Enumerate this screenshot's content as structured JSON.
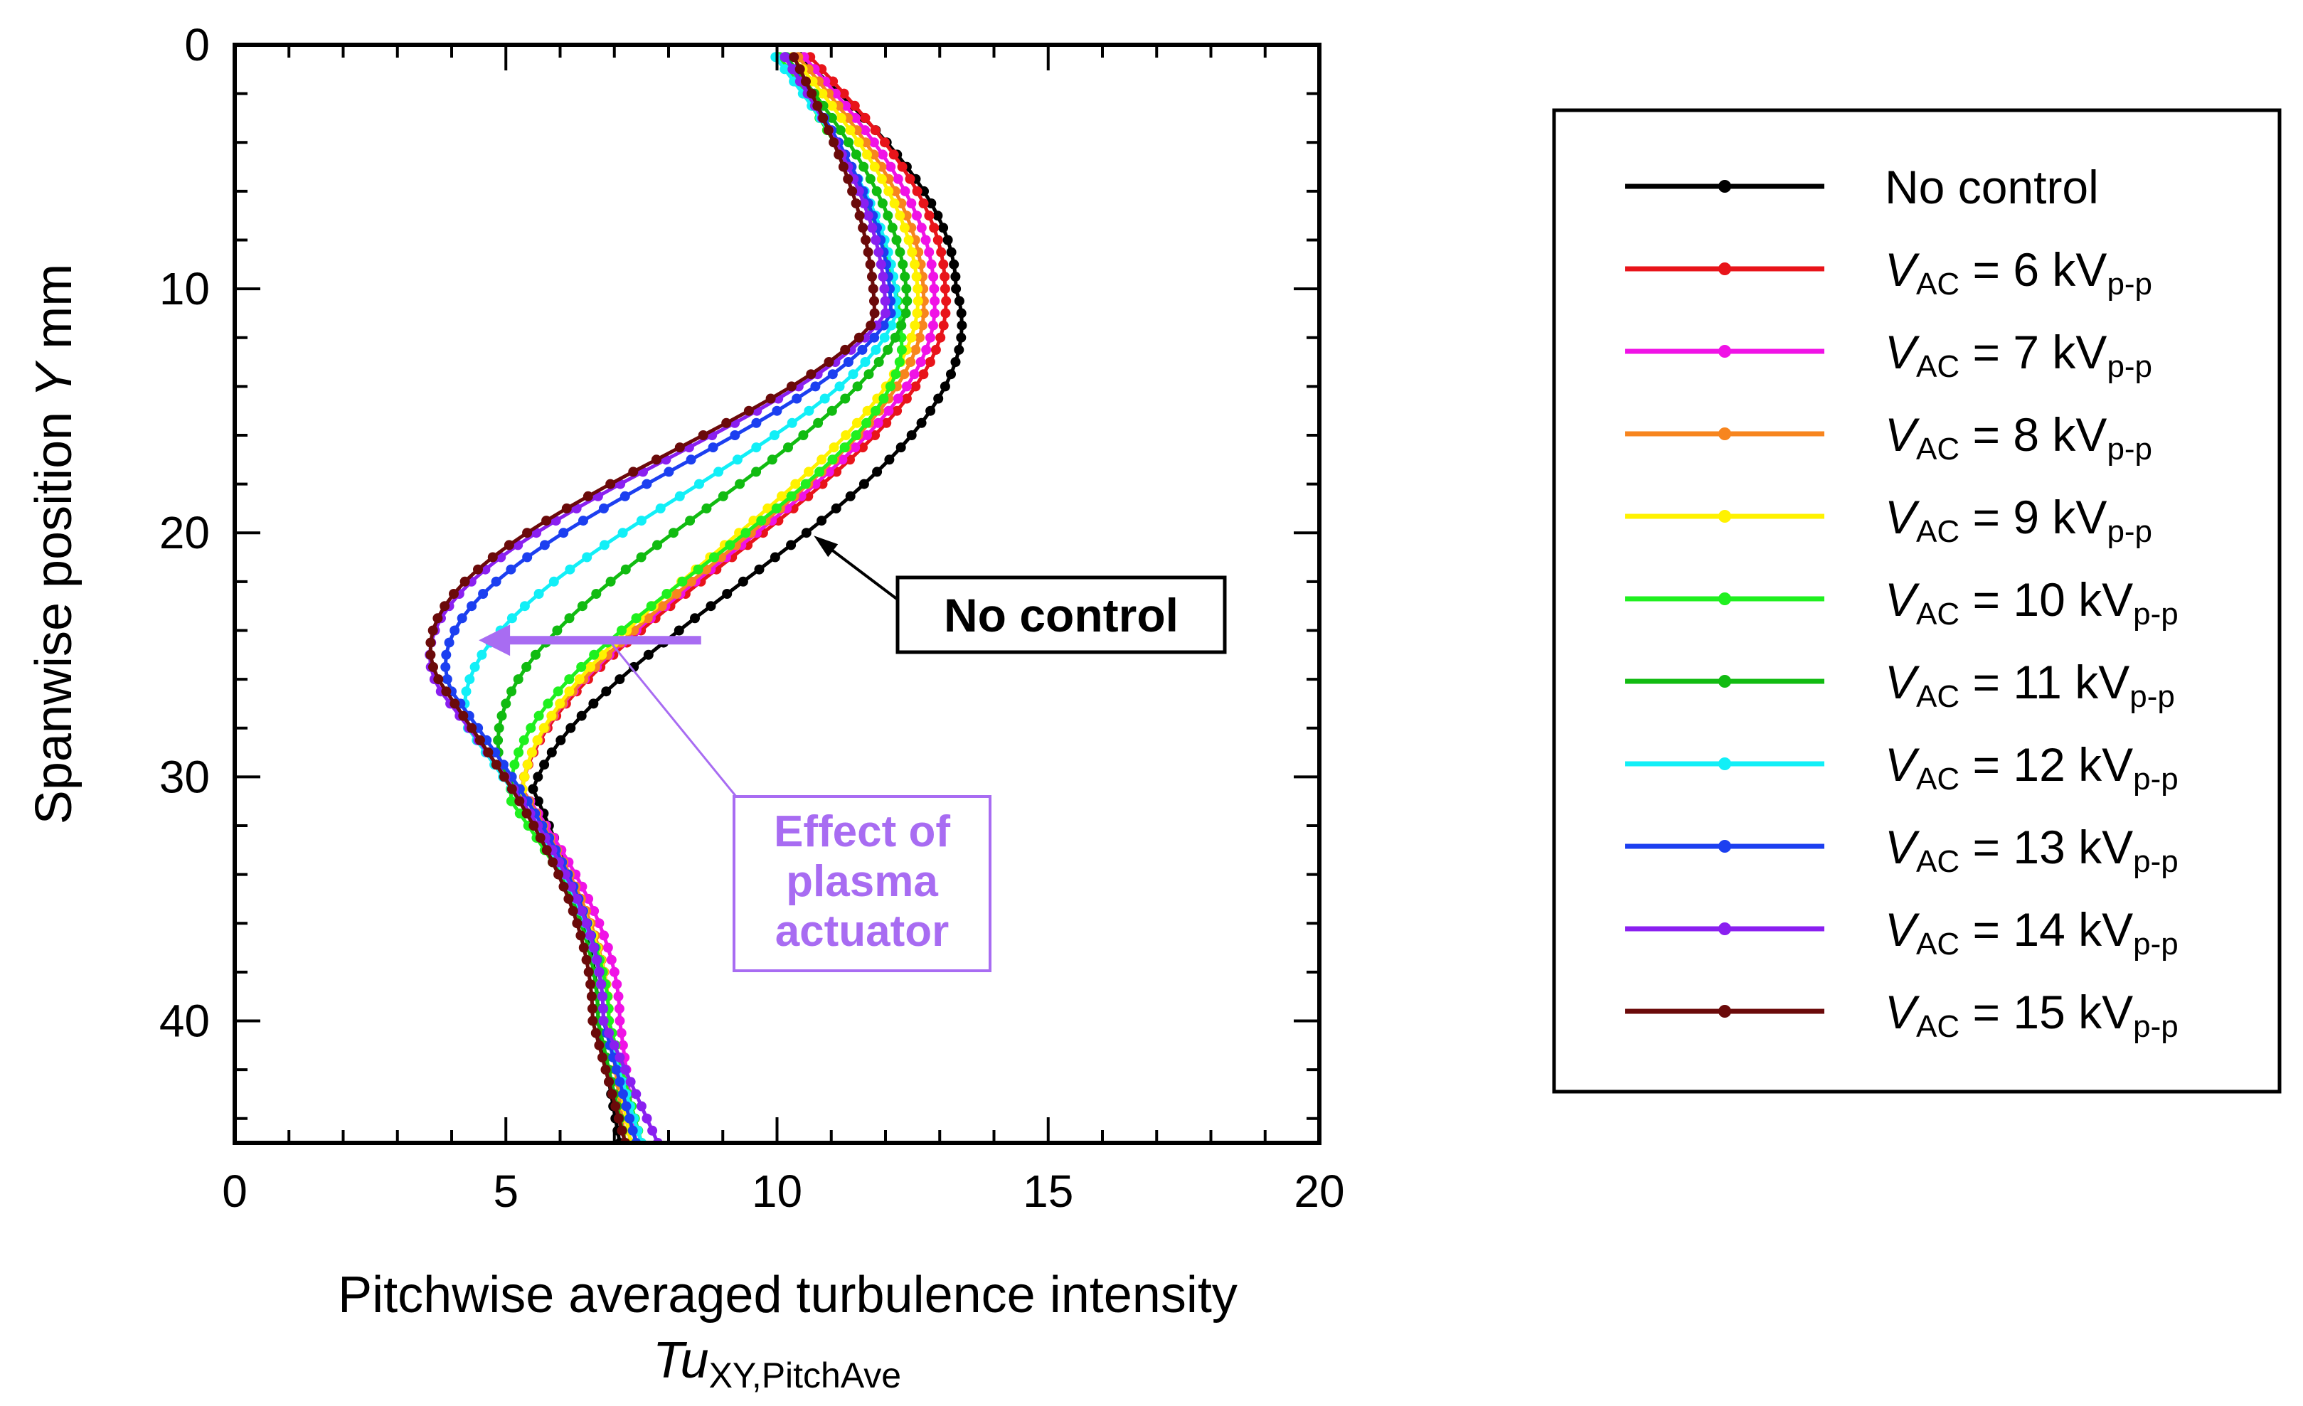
{
  "chart_data": {
    "type": "line",
    "title": "",
    "xlabel": "Pitchwise averaged turbulence intensity",
    "xlabel_symbol": "Tu",
    "xlabel_subscript": "XY,PitchAve",
    "ylabel": "Spanwise position",
    "ylabel_symbol": "Y",
    "ylabel_unit": "mm",
    "xlim": [
      0,
      20
    ],
    "ylim": [
      0,
      45
    ],
    "y_inverted": true,
    "xticks": [
      0,
      5,
      10,
      15,
      20
    ],
    "yticks": [
      0,
      10,
      20,
      30,
      40
    ],
    "grid": false,
    "legend_position": "right",
    "base_y": [
      0.5,
      1.0,
      1.5,
      2.0,
      2.5,
      3.0,
      3.5,
      4.0,
      4.5,
      5.0,
      5.5,
      6.0,
      6.5,
      7.0,
      7.5,
      8.0,
      8.5,
      9.0,
      9.5,
      10.0,
      10.5,
      11.0,
      11.5,
      12.0,
      12.5,
      13.0,
      13.5,
      14.0,
      14.5,
      15.0,
      15.5,
      16.0,
      16.5,
      17.0,
      17.5,
      18.0,
      18.5,
      19.0,
      19.5,
      20.0,
      20.5,
      21.0,
      21.5,
      22.0,
      22.5,
      23.0,
      23.5,
      24.0,
      24.5,
      25.0,
      25.5,
      26.0,
      26.5,
      27.0,
      27.5,
      28.0,
      28.5,
      29.0,
      29.5,
      30.0,
      30.5,
      31.0,
      31.5,
      32.0,
      32.5,
      33.0,
      33.5,
      34.0,
      34.5,
      35.0,
      35.5,
      36.0,
      36.5,
      37.0,
      37.5,
      38.0,
      38.5,
      39.0,
      39.5,
      40.0,
      40.5,
      41.0,
      41.5,
      42.0,
      42.5,
      43.0,
      43.5,
      44.0,
      44.5,
      45.0
    ],
    "series": [
      {
        "name": "No control",
        "color": "#000000",
        "profile": {
          "x0": 10.2,
          "xpeak": 13.3,
          "ypeak": 10,
          "xmid": 10.4,
          "xmin": 5.5,
          "ymin": 30.5,
          "x40": 6.7,
          "x45": 7.1
        }
      },
      {
        "name": "VAC = 6 kVp-p",
        "color": "#e8141a",
        "profile": {
          "x0": 10.4,
          "xpeak": 13.1,
          "ypeak": 10,
          "xmid": 9.6,
          "xmin": 5.3,
          "ymin": 30.5,
          "x40": 6.9,
          "x45": 7.3
        }
      },
      {
        "name": "VAC = 7 kVp-p",
        "color": "#f012e6",
        "profile": {
          "x0": 10.3,
          "xpeak": 12.9,
          "ypeak": 10.3,
          "xmid": 9.4,
          "xmin": 5.3,
          "ymin": 30.5,
          "x40": 7.1,
          "x45": 7.4
        }
      },
      {
        "name": "VAC = 8 kVp-p",
        "color": "#f7851e",
        "profile": {
          "x0": 10.2,
          "xpeak": 12.7,
          "ypeak": 10.3,
          "xmid": 9.3,
          "xmin": 5.3,
          "ymin": 30.5,
          "x40": 6.9,
          "x45": 7.2
        }
      },
      {
        "name": "VAC = 9 kVp-p",
        "color": "#fff200",
        "profile": {
          "x0": 10.1,
          "xpeak": 12.6,
          "ypeak": 10.5,
          "xmid": 8.9,
          "xmin": 5.3,
          "ymin": 31,
          "x40": 6.9,
          "x45": 7.3
        }
      },
      {
        "name": "VAC = 10 kVp-p",
        "color": "#1ff01f",
        "profile": {
          "x0": 9.9,
          "xpeak": 12.3,
          "ypeak": 12.5,
          "xmid": 8.4,
          "xmin": 5.1,
          "ymin": 31,
          "x40": 6.9,
          "x45": 7.5
        }
      },
      {
        "name": "VAC = 11 kVp-p",
        "color": "#11bb11",
        "profile": {
          "x0": 10.0,
          "xpeak": 12.4,
          "ypeak": 10.8,
          "xmid": 8.0,
          "xmin": 4.9,
          "ymin": 29.5,
          "x40": 6.7,
          "x45": 7.2
        }
      },
      {
        "name": "VAC = 12 kVp-p",
        "color": "#12eff7",
        "profile": {
          "x0": 9.8,
          "xpeak": 12.2,
          "ypeak": 11,
          "xmid": 7.5,
          "xmin": 4.3,
          "ymin": 28,
          "x40": 6.8,
          "x45": 7.5
        }
      },
      {
        "name": "VAC = 13 kVp-p",
        "color": "#1c3ff0",
        "profile": {
          "x0": 10.0,
          "xpeak": 12.1,
          "ypeak": 11,
          "xmid": 7.0,
          "xmin": 4.0,
          "ymin": 26.5,
          "x40": 6.8,
          "x45": 7.4
        }
      },
      {
        "name": "VAC = 14 kVp-p",
        "color": "#8a1ff0",
        "profile": {
          "x0": 10.0,
          "xpeak": 12.0,
          "ypeak": 11,
          "xmid": 6.5,
          "xmin": 3.8,
          "ymin": 26.5,
          "x40": 6.8,
          "x45": 7.8
        }
      },
      {
        "name": "VAC = 15 kVp-p",
        "color": "#6b0a0a",
        "profile": {
          "x0": 10.2,
          "xpeak": 11.8,
          "ypeak": 11.3,
          "xmid": 6.2,
          "xmin": 3.9,
          "ymin": 26.5,
          "x40": 6.6,
          "x45": 7.2
        }
      }
    ],
    "annotations": [
      {
        "text": "No control",
        "points_to_series": "No control",
        "point": [
          10.6,
          20
        ]
      },
      {
        "text_lines": [
          "Effect of",
          "plasma",
          "actuator"
        ],
        "color": "#a86cf2",
        "arrow_from": [
          8.6,
          24.4
        ],
        "arrow_to": [
          4.5,
          24.4
        ]
      }
    ]
  },
  "legend": {
    "items": [
      {
        "label": "No control"
      },
      {
        "var": "V",
        "sub": "AC",
        "eq": " = 6 kV",
        "unit_sub": "p-p"
      },
      {
        "var": "V",
        "sub": "AC",
        "eq": " = 7 kV",
        "unit_sub": "p-p"
      },
      {
        "var": "V",
        "sub": "AC",
        "eq": " = 8 kV",
        "unit_sub": "p-p"
      },
      {
        "var": "V",
        "sub": "AC",
        "eq": " = 9 kV",
        "unit_sub": "p-p"
      },
      {
        "var": "V",
        "sub": "AC",
        "eq": " = 10 kV",
        "unit_sub": "p-p"
      },
      {
        "var": "V",
        "sub": "AC",
        "eq": " = 11 kV",
        "unit_sub": "p-p"
      },
      {
        "var": "V",
        "sub": "AC",
        "eq": " = 12 kV",
        "unit_sub": "p-p"
      },
      {
        "var": "V",
        "sub": "AC",
        "eq": " = 13 kV",
        "unit_sub": "p-p"
      },
      {
        "var": "V",
        "sub": "AC",
        "eq": " = 14 kV",
        "unit_sub": "p-p"
      },
      {
        "var": "V",
        "sub": "AC",
        "eq": " = 15 kV",
        "unit_sub": "p-p"
      }
    ]
  }
}
